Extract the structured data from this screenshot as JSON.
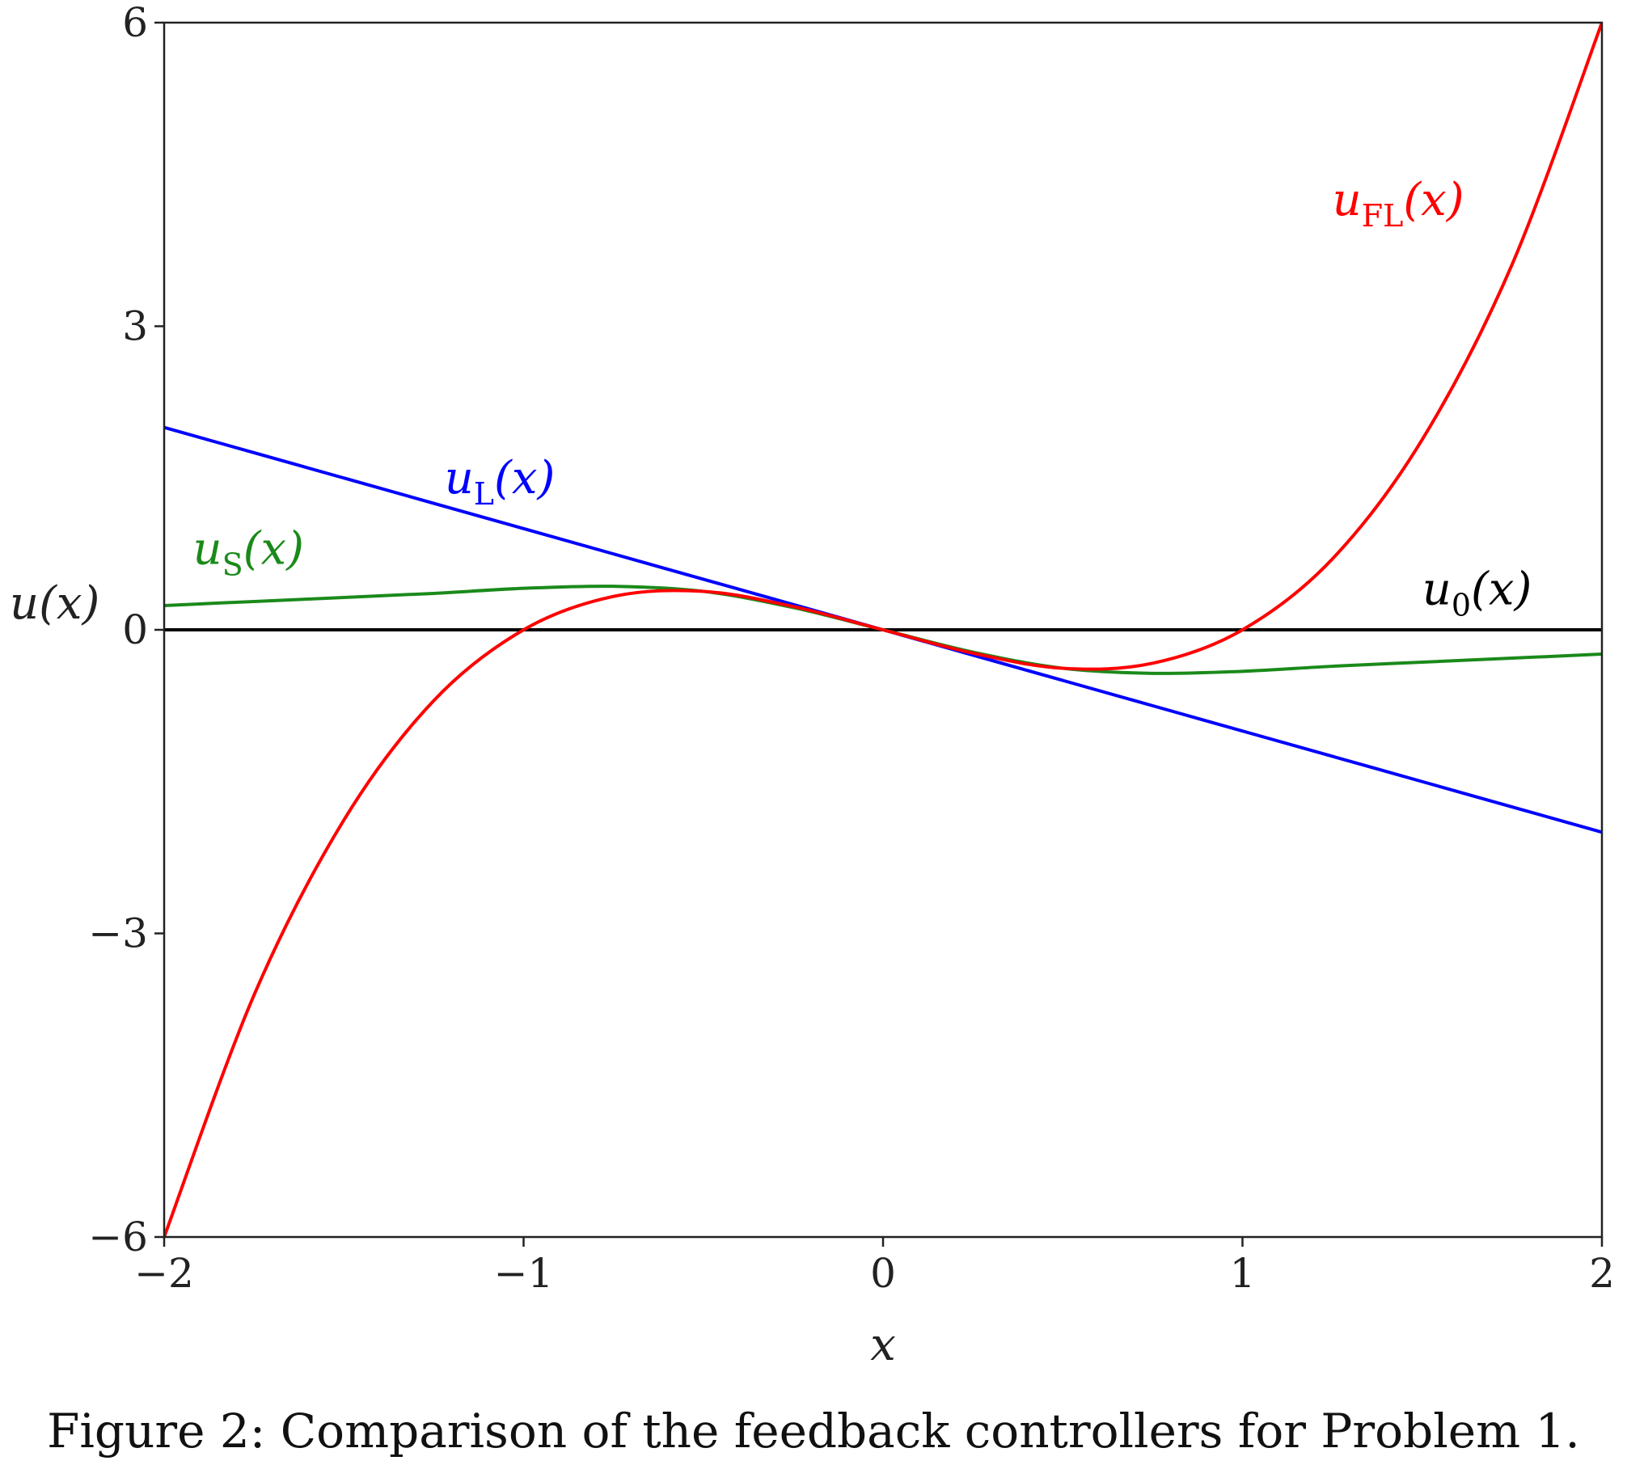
{
  "caption": "Figure 2: Comparison of the feedback controllers for Problem 1.",
  "chart_data": {
    "type": "line",
    "xlabel": "x",
    "ylabel": "u(x)",
    "xlim": [
      -2,
      2
    ],
    "ylim": [
      -6,
      6
    ],
    "xticks": [
      -2,
      -1,
      0,
      1,
      2
    ],
    "xtick_labels": [
      "−2",
      "−1",
      "0",
      "1",
      "2"
    ],
    "yticks": [
      -6,
      -3,
      0,
      3,
      6
    ],
    "ytick_labels": [
      "−6",
      "−3",
      "0",
      "3",
      "6"
    ],
    "grid": false,
    "legend": "none",
    "x": [
      -2,
      -1.75,
      -1.5,
      -1.25,
      -1,
      -0.75,
      -0.5,
      -0.25,
      0,
      0.25,
      0.5,
      0.75,
      1,
      1.25,
      1.5,
      1.75,
      2
    ],
    "series": [
      {
        "name": "u_FL(x)",
        "label_base": "u",
        "label_sub": "FL",
        "label_tail": "(x)",
        "color": "#ff0000",
        "values": [
          -6,
          -3.61,
          -1.88,
          -0.7,
          0,
          0.33,
          0.38,
          0.23,
          0,
          -0.23,
          -0.38,
          -0.33,
          0,
          0.7,
          1.88,
          3.61,
          6
        ]
      },
      {
        "name": "u_L(x)",
        "label_base": "u",
        "label_sub": "L",
        "label_tail": "(x)",
        "color": "#0000ff",
        "values": [
          2,
          1.75,
          1.5,
          1.25,
          1,
          0.75,
          0.5,
          0.25,
          0,
          -0.25,
          -0.5,
          -0.75,
          -1,
          -1.25,
          -1.5,
          -1.75,
          -2
        ]
      },
      {
        "name": "u_S(x)",
        "label_base": "u",
        "label_sub": "S",
        "label_tail": "(x)",
        "color": "#1a8a1a",
        "values": [
          0.24,
          0.28,
          0.32,
          0.36,
          0.41,
          0.43,
          0.38,
          0.22,
          0,
          -0.22,
          -0.38,
          -0.43,
          -0.41,
          -0.36,
          -0.32,
          -0.28,
          -0.24
        ]
      },
      {
        "name": "u_0(x)",
        "label_base": "u",
        "label_sub": "0",
        "label_tail": "(x)",
        "color": "#000000",
        "values": [
          0,
          0,
          0,
          0,
          0,
          0,
          0,
          0,
          0,
          0,
          0,
          0,
          0,
          0,
          0,
          0,
          0
        ]
      }
    ]
  }
}
